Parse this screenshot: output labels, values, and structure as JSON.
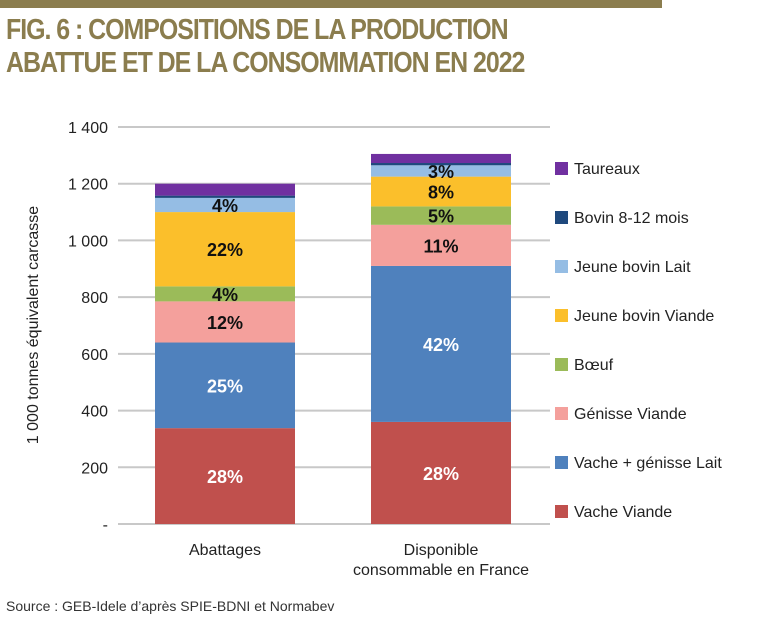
{
  "title": "FIG. 6 : COMPOSITIONS DE LA PRODUCTION ABATTUE ET DE LA CONSOMMATION  EN 2022",
  "source": "Source : GEB-Idele d’après SPIE-BDNI et Normabev",
  "chart_data": {
    "type": "bar",
    "stacked": true,
    "ylabel": "1 000 tonnes équivalent carcasse",
    "ylim": [
      0,
      1400
    ],
    "yticks": [
      0,
      200,
      400,
      600,
      800,
      1000,
      1200,
      1400
    ],
    "ytick_labels": [
      "-",
      "200",
      "400",
      "600",
      "800",
      "1 000",
      "1 200",
      "1 400"
    ],
    "grid": true,
    "legend_position": "right",
    "categories": [
      "Abattages",
      "Disponible consommable en France"
    ],
    "series": [
      {
        "name": "Vache Viande",
        "color": "#c0504d",
        "values": [
          338,
          360
        ],
        "labels": [
          "28%",
          "28%"
        ]
      },
      {
        "name": "Vache + génisse Lait",
        "color": "#4f81bd",
        "values": [
          302,
          550
        ],
        "labels": [
          "25%",
          "42%"
        ]
      },
      {
        "name": "Génisse Viande",
        "color": "#f4a09c",
        "values": [
          145,
          145
        ],
        "labels": [
          "12%",
          "11%"
        ]
      },
      {
        "name": "Bœuf",
        "color": "#9bbb59",
        "values": [
          53,
          65
        ],
        "labels": [
          "4%",
          "5%"
        ]
      },
      {
        "name": "Jeune bovin Viande",
        "color": "#fbbf2b",
        "values": [
          262,
          105
        ],
        "labels": [
          "22%",
          "8%"
        ]
      },
      {
        "name": "Jeune bovin Lait",
        "color": "#95bde4",
        "values": [
          50,
          40
        ],
        "labels": [
          "4%",
          "3%"
        ]
      },
      {
        "name": "Bovin 8-12 mois",
        "color": "#1f497d",
        "values": [
          8,
          8
        ],
        "labels": [
          "",
          ""
        ]
      },
      {
        "name": "Taureaux",
        "color": "#7030a0",
        "values": [
          42,
          32
        ],
        "labels": [
          "",
          ""
        ]
      }
    ]
  }
}
